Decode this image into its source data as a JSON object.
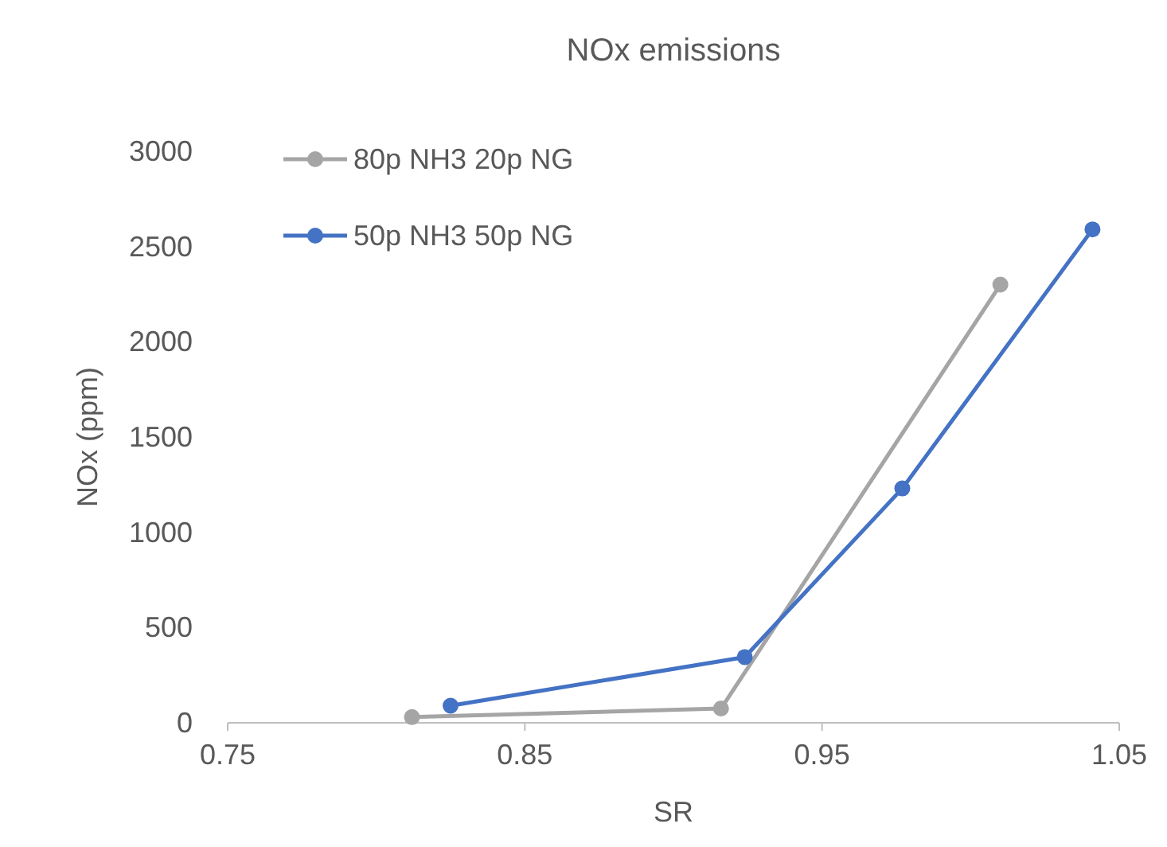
{
  "chart_data": {
    "type": "line",
    "title": "NOx emissions",
    "xlabel": "SR",
    "ylabel": "NOx (ppm)",
    "series": [
      {
        "name": "80p NH3 20p NG",
        "color": "#a5a5a5",
        "x": [
          0.812,
          0.916,
          1.01
        ],
        "values": [
          30,
          75,
          2300
        ]
      },
      {
        "name": "50p NH3 50p NG",
        "color": "#4472c4",
        "x": [
          0.825,
          0.924,
          0.977,
          1.041
        ],
        "values": [
          90,
          345,
          1230,
          2590
        ]
      }
    ],
    "xlim": [
      0.75,
      1.05
    ],
    "xticks": [
      0.75,
      0.85,
      0.95,
      1.05
    ],
    "ylim": [
      0,
      3000
    ],
    "yticks": [
      0,
      500,
      1000,
      1500,
      2000,
      2500,
      3000
    ],
    "grid": false,
    "legend": "top left",
    "marker": "circle"
  }
}
